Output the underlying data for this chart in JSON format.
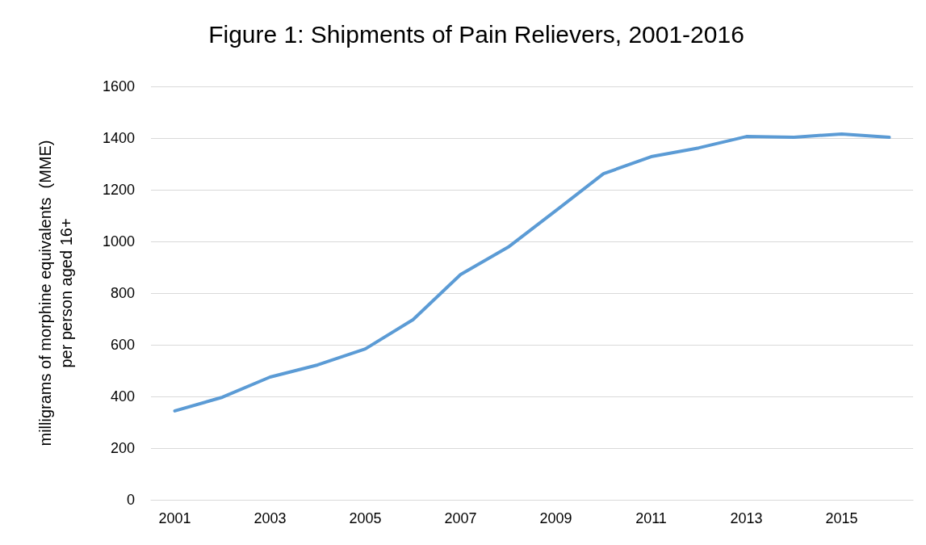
{
  "chart_data": {
    "type": "line",
    "title": "Figure 1: Shipments of Pain Relievers, 2001-2016",
    "ylabel": "milligrams of morphine equivalents  (MME)\nper person aged 16+",
    "categories": [
      "2001",
      null,
      "2003",
      null,
      "2005",
      null,
      "2007",
      null,
      "2009",
      null,
      "2011",
      null,
      "2013",
      null,
      "2015",
      null
    ],
    "series": [
      {
        "color": "#5b9bd5",
        "values": [
          344,
          397,
          475,
          522,
          584,
          697,
          872,
          978,
          1119,
          1262,
          1328,
          1362,
          1406,
          1403,
          1416,
          1403
        ]
      }
    ],
    "ylim": [
      0,
      1600
    ],
    "yticks": [
      0,
      200,
      400,
      600,
      800,
      1000,
      1200,
      1400,
      1600
    ],
    "grid": "y",
    "marker": "none",
    "line_style": "solid"
  }
}
